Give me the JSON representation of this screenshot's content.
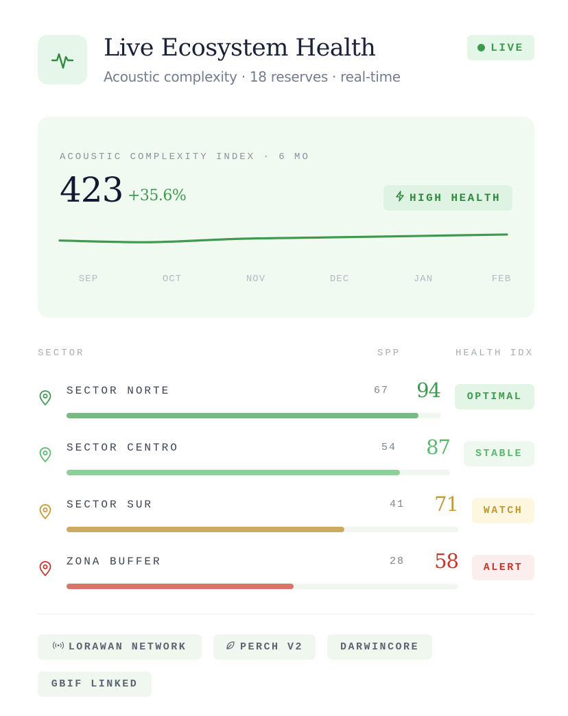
{
  "header": {
    "title": "Live Ecosystem Health",
    "subtitle": "Acoustic complexity · 18 reserves · real-time",
    "live_label": "LIVE",
    "app_icon": "activity-pulse-icon"
  },
  "metric": {
    "label": "ACOUSTIC COMPLEXITY INDEX · 6 MO",
    "value": "423",
    "change": "+35.6%",
    "badge": "HIGH HEALTH",
    "badge_icon": "lightning-icon"
  },
  "chart_data": {
    "type": "line",
    "categories": [
      "SEP",
      "OCT",
      "NOV",
      "DEC",
      "JAN",
      "FEB"
    ],
    "series": [
      {
        "values": [
          0.49,
          0.455,
          0.525,
          0.555,
          0.585,
          0.615
        ]
      }
    ],
    "ylim": [
      0,
      1
    ],
    "grid": false,
    "color": "#3f9a50"
  },
  "table": {
    "col_sector": "SECTOR",
    "col_spp": "SPP",
    "col_health": "HEALTH IDX",
    "rows": [
      {
        "name": "SECTOR NORTE",
        "spp": "67",
        "score": "94",
        "status": "OPTIMAL",
        "level": 0.94,
        "color": "#3f9a50",
        "bar": "#79b985",
        "badge_bg": "#e3f5e6",
        "badge_fg": "#3f9a50"
      },
      {
        "name": "SECTOR CENTRO",
        "spp": "54",
        "score": "87",
        "status": "STABLE",
        "level": 0.87,
        "color": "#5bb870",
        "bar": "#8ccf97",
        "badge_bg": "#eef8ef",
        "badge_fg": "#5bb870"
      },
      {
        "name": "SECTOR SUR",
        "spp": "41",
        "score": "71",
        "status": "WATCH",
        "level": 0.71,
        "color": "#c39836",
        "bar": "#cdaa62",
        "badge_bg": "#fdf7df",
        "badge_fg": "#c39836"
      },
      {
        "name": "ZONA BUFFER",
        "spp": "28",
        "score": "58",
        "status": "ALERT",
        "level": 0.58,
        "color": "#c8362b",
        "bar": "#d6766b",
        "badge_bg": "#fbeeec",
        "badge_fg": "#c8362b"
      }
    ]
  },
  "tags": [
    {
      "label": "LORAWAN NETWORK",
      "icon": "radio-signal-icon"
    },
    {
      "label": "PERCH V2",
      "icon": "leaf-icon"
    },
    {
      "label": "DARWINCORE",
      "icon": ""
    },
    {
      "label": "GBIF LINKED",
      "icon": ""
    }
  ]
}
